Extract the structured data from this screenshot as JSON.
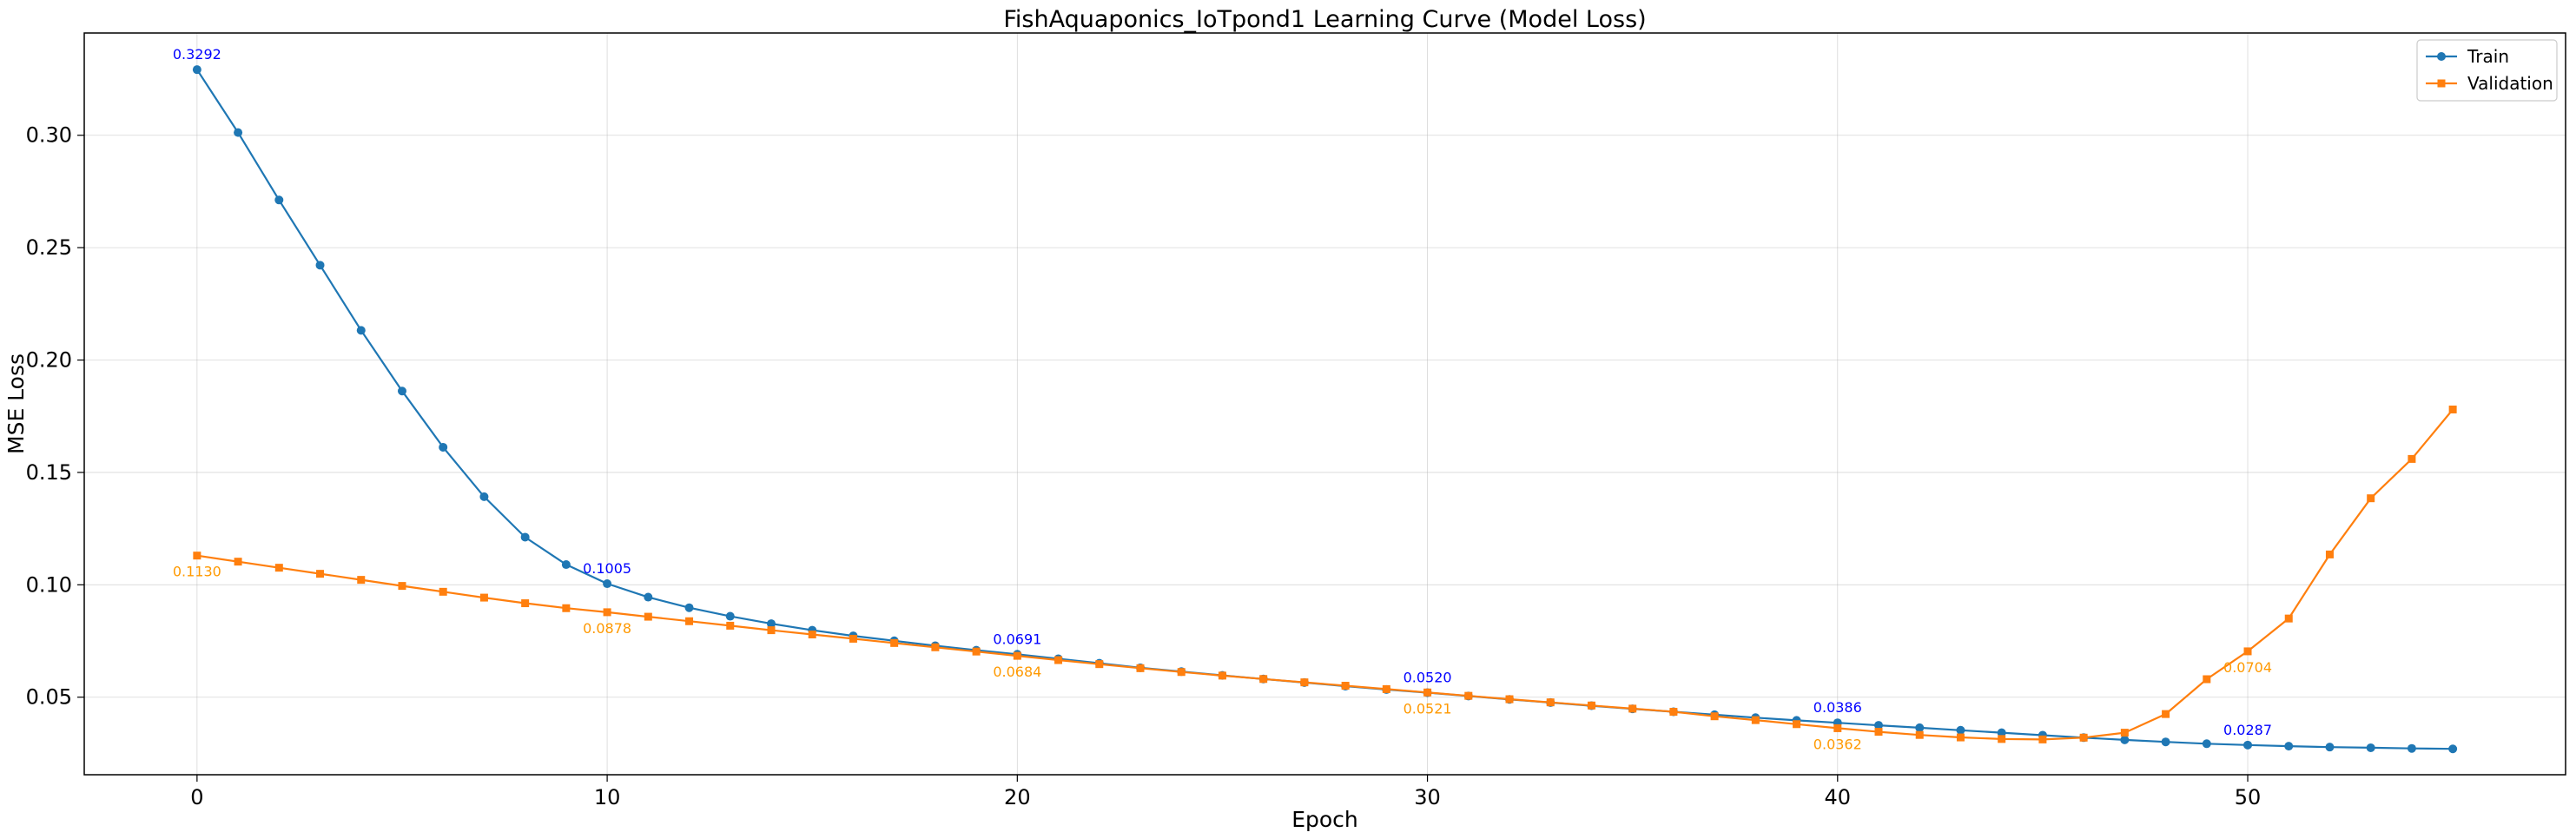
{
  "chart_data": {
    "type": "line",
    "title": "FishAquaponics_IoTpond1 Learning Curve (Model Loss)",
    "xlabel": "Epoch",
    "ylabel": "MSE Loss",
    "xlim": [
      -2.75,
      57.75
    ],
    "ylim": [
      0.0155,
      0.3455
    ],
    "xticks": [
      0,
      10,
      20,
      30,
      40,
      50
    ],
    "yticks": [
      0.05,
      0.1,
      0.15,
      0.2,
      0.25,
      0.3
    ],
    "ytick_labels": [
      "0.05",
      "0.10",
      "0.15",
      "0.20",
      "0.25",
      "0.30"
    ],
    "grid": true,
    "legend_position": "top-right",
    "x": [
      0,
      1,
      2,
      3,
      4,
      5,
      6,
      7,
      8,
      9,
      10,
      11,
      12,
      13,
      14,
      15,
      16,
      17,
      18,
      19,
      20,
      21,
      22,
      23,
      24,
      25,
      26,
      27,
      28,
      29,
      30,
      31,
      32,
      33,
      34,
      35,
      36,
      37,
      38,
      39,
      40,
      41,
      42,
      43,
      44,
      45,
      46,
      47,
      48,
      49,
      50,
      51,
      52,
      53,
      54,
      55
    ],
    "series": [
      {
        "name": "Train",
        "color": "#1f77b4",
        "marker": "circle",
        "values": [
          0.3292,
          0.3012,
          0.2712,
          0.2422,
          0.2132,
          0.1862,
          0.1612,
          0.1392,
          0.1212,
          0.109,
          0.1005,
          0.0945,
          0.0898,
          0.086,
          0.0827,
          0.0798,
          0.0773,
          0.0751,
          0.0729,
          0.0709,
          0.0691,
          0.0671,
          0.0651,
          0.0631,
          0.0614,
          0.0597,
          0.0581,
          0.0565,
          0.0549,
          0.0534,
          0.052,
          0.0505,
          0.049,
          0.0476,
          0.0462,
          0.0448,
          0.0435,
          0.0422,
          0.0409,
          0.0397,
          0.0386,
          0.0375,
          0.0364,
          0.0353,
          0.0342,
          0.0331,
          0.032,
          0.031,
          0.0301,
          0.0293,
          0.0287,
          0.0282,
          0.0278,
          0.0275,
          0.0272,
          0.027
        ]
      },
      {
        "name": "Validation",
        "color": "#ff7f0e",
        "marker": "square",
        "values": [
          0.113,
          0.1103,
          0.1076,
          0.1049,
          0.1022,
          0.0995,
          0.0969,
          0.0943,
          0.0918,
          0.0896,
          0.0878,
          0.0858,
          0.0838,
          0.0818,
          0.0798,
          0.0779,
          0.076,
          0.0741,
          0.0722,
          0.0703,
          0.0684,
          0.0665,
          0.0647,
          0.0629,
          0.0612,
          0.0596,
          0.0581,
          0.0566,
          0.0551,
          0.0536,
          0.0521,
          0.0506,
          0.0491,
          0.0477,
          0.0463,
          0.0449,
          0.0435,
          0.0415,
          0.0398,
          0.038,
          0.0362,
          0.0346,
          0.0332,
          0.0321,
          0.0314,
          0.0312,
          0.032,
          0.0342,
          0.0425,
          0.058,
          0.0704,
          0.085,
          0.1135,
          0.1385,
          0.156,
          0.178
        ]
      }
    ],
    "annotations": [
      {
        "series": "Train",
        "x": 0,
        "text": "0.3292",
        "color": "#0000ff",
        "position": "above"
      },
      {
        "series": "Train",
        "x": 10,
        "text": "0.1005",
        "color": "#0000ff",
        "position": "above"
      },
      {
        "series": "Train",
        "x": 20,
        "text": "0.0691",
        "color": "#0000ff",
        "position": "above"
      },
      {
        "series": "Train",
        "x": 30,
        "text": "0.0520",
        "color": "#0000ff",
        "position": "above"
      },
      {
        "series": "Train",
        "x": 40,
        "text": "0.0386",
        "color": "#0000ff",
        "position": "above"
      },
      {
        "series": "Train",
        "x": 50,
        "text": "0.0287",
        "color": "#0000ff",
        "position": "above"
      },
      {
        "series": "Validation",
        "x": 0,
        "text": "0.1130",
        "color": "#ff9900",
        "position": "below"
      },
      {
        "series": "Validation",
        "x": 10,
        "text": "0.0878",
        "color": "#ff9900",
        "position": "below"
      },
      {
        "series": "Validation",
        "x": 20,
        "text": "0.0684",
        "color": "#ff9900",
        "position": "below"
      },
      {
        "series": "Validation",
        "x": 30,
        "text": "0.0521",
        "color": "#ff9900",
        "position": "below"
      },
      {
        "series": "Validation",
        "x": 40,
        "text": "0.0362",
        "color": "#ff9900",
        "position": "below"
      },
      {
        "series": "Validation",
        "x": 50,
        "text": "0.0704",
        "color": "#ff9900",
        "position": "below"
      }
    ]
  }
}
